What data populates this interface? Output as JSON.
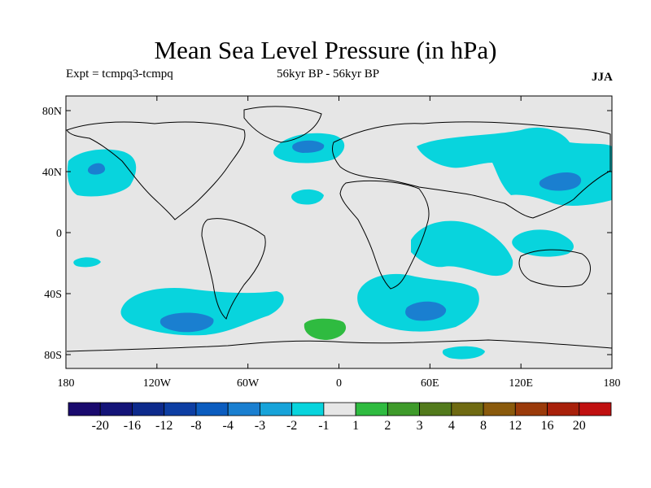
{
  "header": {
    "title": "Mean Sea Level Pressure (in hPa)",
    "experiment": "Expt = tcmpq3-tcmpq",
    "period": "56kyr BP - 56kyr BP",
    "season": "JJA"
  },
  "map": {
    "projection": "equirectangular",
    "lon_ticks": [
      "180",
      "120W",
      "60W",
      "0",
      "60E",
      "120E",
      "180"
    ],
    "lat_ticks": [
      "80N",
      "40N",
      "0",
      "40S",
      "80S"
    ],
    "background_color": "#e6e6e6",
    "land_outline_color": "#000000"
  },
  "colorbar": {
    "labels": [
      "-20",
      "-16",
      "-12",
      "-8",
      "-4",
      "-3",
      "-2",
      "-1",
      "1",
      "2",
      "3",
      "4",
      "8",
      "12",
      "16",
      "20"
    ],
    "colors": [
      "#1a0a6e",
      "#141478",
      "#0d2a8c",
      "#0d3ea3",
      "#0b5cbf",
      "#1a7fd0",
      "#17a3d9",
      "#08d4dd",
      "#e6e6e6",
      "#2fbb40",
      "#3e9a2a",
      "#527a1c",
      "#6f6a12",
      "#8a5a0c",
      "#9a3a0a",
      "#a8200a",
      "#c01010"
    ]
  },
  "anomalies": [
    {
      "name": "north-pacific-east-low",
      "level": "-2",
      "color": "#08d4dd"
    },
    {
      "name": "north-pacific-east-core",
      "level": "-3",
      "color": "#1a7fd0"
    },
    {
      "name": "north-atlantic-low",
      "level": "-2",
      "color": "#08d4dd"
    },
    {
      "name": "north-atlantic-core",
      "level": "-3",
      "color": "#1a7fd0"
    },
    {
      "name": "eurasia-asia-low",
      "level": "-2",
      "color": "#08d4dd"
    },
    {
      "name": "northwest-pacific-core",
      "level": "-3",
      "color": "#1a7fd0"
    },
    {
      "name": "south-indian-ocean-low",
      "level": "-2",
      "color": "#08d4dd"
    },
    {
      "name": "south-indian-ocean-core",
      "level": "-3",
      "color": "#1a7fd0"
    },
    {
      "name": "southeast-pacific-low",
      "level": "-2",
      "color": "#08d4dd"
    },
    {
      "name": "southeast-pacific-core",
      "level": "-3",
      "color": "#1a7fd0"
    },
    {
      "name": "weddell-sea-high",
      "level": "1",
      "color": "#2fbb40"
    }
  ]
}
